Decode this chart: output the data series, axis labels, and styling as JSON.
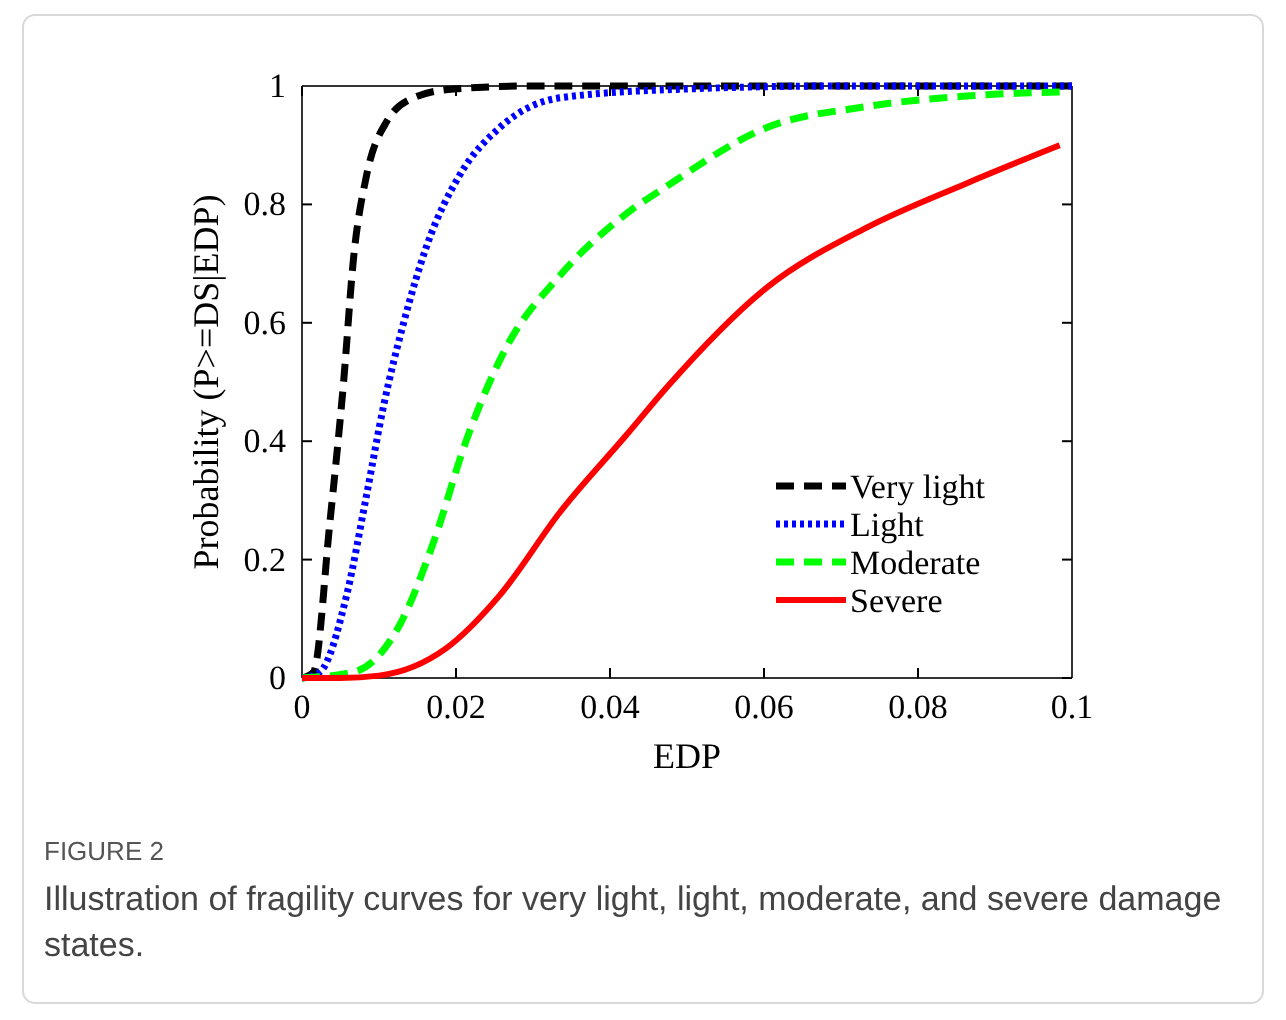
{
  "chart_data": {
    "type": "line",
    "xlabel": "EDP",
    "ylabel": "Probability (P>=DS|EDP)",
    "xlim": [
      0,
      0.1
    ],
    "ylim": [
      0,
      1
    ],
    "xticks": [
      0,
      0.02,
      0.04,
      0.06,
      0.08,
      {
        "value": 0.1,
        "label": "0.1"
      }
    ],
    "yticks": [
      0,
      0.2,
      0.4,
      0.6,
      0.8,
      1
    ],
    "grid": false,
    "legend": "bottom right",
    "marker": "none",
    "annotations": [
      "FIGURE 2",
      "Illustration of fragility curves for very light, light, moderate, and severe damage states."
    ],
    "series": [
      {
        "name": "Very light",
        "color": "#000000",
        "line_style": "dashed",
        "x": [
          0,
          0.0015,
          0.0036,
          0.0054,
          0.0067,
          0.0084,
          0.011,
          0.0145,
          0.0197,
          0.03,
          0.05,
          0.1
        ],
        "values": [
          0,
          0.01,
          0.26,
          0.5,
          0.71,
          0.85,
          0.94,
          0.98,
          0.995,
          1,
          1,
          1
        ]
      },
      {
        "name": "Light",
        "color": "#0000ff",
        "line_style": "dotted",
        "x": [
          0,
          0.0023,
          0.0058,
          0.0084,
          0.0106,
          0.0132,
          0.0162,
          0.0205,
          0.0257,
          0.0335,
          0.05,
          0.07,
          0.1
        ],
        "values": [
          0,
          0.01,
          0.14,
          0.31,
          0.46,
          0.6,
          0.73,
          0.85,
          0.93,
          0.98,
          0.995,
          1,
          1
        ]
      },
      {
        "name": "Moderate",
        "color": "#00ff00",
        "line_style": "dashed",
        "x": [
          0,
          0.0067,
          0.0127,
          0.0171,
          0.0213,
          0.0266,
          0.0335,
          0.0422,
          0.0473,
          0.0604,
          0.0732,
          0.0862,
          0.0984
        ],
        "values": [
          0,
          0.01,
          0.09,
          0.23,
          0.4,
          0.56,
          0.68,
          0.785,
          0.83,
          0.93,
          0.965,
          0.983,
          0.99
        ]
      },
      {
        "name": "Severe",
        "color": "#ff0000",
        "line_style": "solid",
        "x": [
          0,
          0.005,
          0.01,
          0.0187,
          0.0257,
          0.0335,
          0.0421,
          0.0473,
          0.0604,
          0.0732,
          0.0862,
          0.0984
        ],
        "values": [
          0,
          0,
          0.004,
          0.05,
          0.14,
          0.28,
          0.41,
          0.49,
          0.66,
          0.76,
          0.835,
          0.9
        ]
      }
    ]
  }
}
